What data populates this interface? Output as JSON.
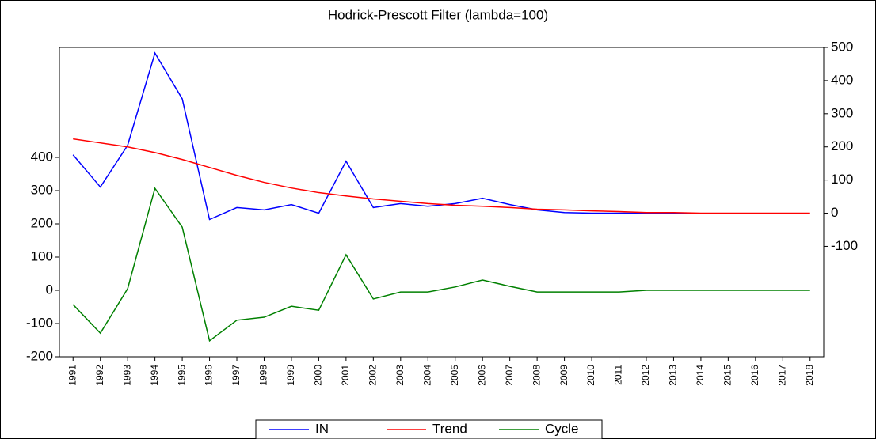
{
  "chart_data": {
    "type": "line",
    "title": "Hodrick-Prescott Filter (lambda=100)",
    "categories": [
      "1991",
      "1992",
      "1993",
      "1994",
      "1995",
      "1996",
      "1997",
      "1998",
      "1999",
      "2000",
      "2001",
      "2002",
      "2003",
      "2004",
      "2005",
      "2006",
      "2007",
      "2008",
      "2009",
      "2010",
      "2011",
      "2012",
      "2013",
      "2014",
      "2015",
      "2016",
      "2017",
      "2018"
    ],
    "series": [
      {
        "name": "IN",
        "color": "#0000ff",
        "axis": "y2",
        "values": [
          176,
          79,
          205,
          483,
          345,
          -19,
          17,
          10,
          26,
          0,
          157,
          17,
          29,
          21,
          29,
          45,
          26,
          10,
          2,
          0,
          0,
          0,
          -1,
          -1,
          null,
          null,
          null,
          null
        ]
      },
      {
        "name": "Trend",
        "color": "#ff0000",
        "axis": "y2",
        "values": [
          224,
          212,
          200,
          183,
          162,
          138,
          114,
          93,
          76,
          62,
          52,
          43,
          36,
          29,
          24,
          21,
          17,
          12,
          10,
          7,
          5,
          2,
          2,
          0,
          0,
          0,
          0,
          0
        ]
      },
      {
        "name": "Cycle",
        "color": "#008000",
        "values": [
          -43,
          -129,
          5,
          307,
          190,
          -152,
          -90,
          -81,
          -48,
          -60,
          107,
          -26,
          -5,
          -5,
          10,
          31,
          12,
          -5,
          -5,
          -5,
          -5,
          0,
          0,
          0,
          0,
          0,
          0,
          0
        ]
      }
    ],
    "ylim": [
      -200,
      731
    ],
    "yticks": [
      -200,
      -100,
      0,
      100,
      200,
      300,
      400
    ],
    "y2lim": [
      -433,
      500
    ],
    "y2ticks": [
      -100,
      0,
      100,
      200,
      300,
      400,
      500
    ],
    "legend": "bottom"
  }
}
